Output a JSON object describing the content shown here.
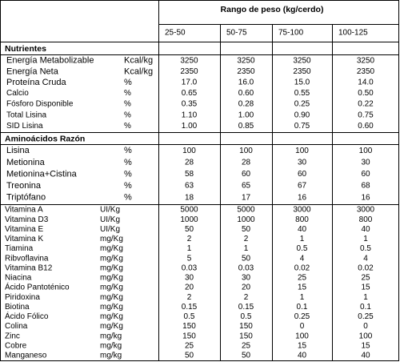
{
  "header": {
    "title": "Rango de peso (kg/cerdo)",
    "columns": [
      "25-50",
      "50-75",
      "75-100",
      "100-125"
    ]
  },
  "sections": [
    {
      "title": "Nutrientes",
      "rows": [
        [
          "Energía Metabolizable",
          "Kcal/kg",
          "3250",
          "3250",
          "3250",
          "3250"
        ],
        [
          "Energía Neta",
          "Kcal/kg",
          "2350",
          "2350",
          "2350",
          "2350"
        ],
        [
          "Proteína Cruda",
          "%",
          "17.0",
          "16.0",
          "15.0",
          "14.0"
        ],
        [
          "Calcio",
          "%",
          "0.65",
          "0.60",
          "0.55",
          "0.50"
        ],
        [
          "Fósforo Disponible",
          "%",
          "0.35",
          "0.28",
          "0.25",
          "0.22"
        ],
        [
          "Total Lisina",
          "%",
          "1.10",
          "1.00",
          "0.90",
          "0.75"
        ],
        [
          "SID Lisina",
          "%",
          "1.00",
          "0.85",
          "0.75",
          "0.60"
        ]
      ]
    },
    {
      "title": "Aminoácidos Razón",
      "rows": [
        [
          "Lisina",
          "%",
          "100",
          "100",
          "100",
          "100"
        ],
        [
          "Metionina",
          "%",
          "28",
          "28",
          "30",
          "30"
        ],
        [
          "Metionina+Cistina",
          "%",
          "58",
          "60",
          "60",
          "60"
        ],
        [
          "Treonina",
          "%",
          "63",
          "65",
          "67",
          "68"
        ],
        [
          "Triptófano",
          "%",
          "18",
          "17",
          "16",
          "16"
        ]
      ]
    },
    {
      "rows": [
        [
          "Vitamina A",
          "UI/Kg",
          "5000",
          "5000",
          "3000",
          "3000"
        ],
        [
          "Vitamina D3",
          "UI/Kg",
          "1000",
          "1000",
          "800",
          "800"
        ],
        [
          "Vitamina E",
          "UI/Kg",
          "50",
          "50",
          "40",
          "40"
        ],
        [
          "Vitamina K",
          "mg/Kg",
          "2",
          "2",
          "1",
          "1"
        ],
        [
          "Tiamina",
          "mg/Kg",
          "1",
          "1",
          "0.5",
          "0.5"
        ],
        [
          "Ribvoflavina",
          "mg/Kg",
          "5",
          "50",
          "4",
          "4"
        ],
        [
          "Vitamina B12",
          "mg/Kg",
          "0.03",
          "0.03",
          "0.02",
          "0.02"
        ],
        [
          "Niacina",
          "mg/Kg",
          "30",
          "30",
          "25",
          "25"
        ],
        [
          "Ácido Pantoténico",
          "mg/Kg",
          "20",
          "20",
          "15",
          "15"
        ],
        [
          "Piridoxina",
          "mg/Kg",
          "2",
          "2",
          "1",
          "1"
        ],
        [
          "Biotina",
          "mg/Kg",
          "0.15",
          "0.15",
          "0.1",
          "0.1"
        ],
        [
          "Ácido Fólico",
          "mg/Kg",
          "0.5",
          "0.5",
          "0.25",
          "0.25"
        ],
        [
          "Colina",
          "mg/Kg",
          "150",
          "150",
          "0",
          "0"
        ],
        [
          "Zinc",
          "mg/kg",
          "150",
          "150",
          "100",
          "100"
        ],
        [
          "Cobre",
          "mg/kg",
          "25",
          "25",
          "15",
          "15"
        ],
        [
          "Manganeso",
          "mg/kg",
          "50",
          "50",
          "40",
          "40"
        ]
      ]
    }
  ]
}
